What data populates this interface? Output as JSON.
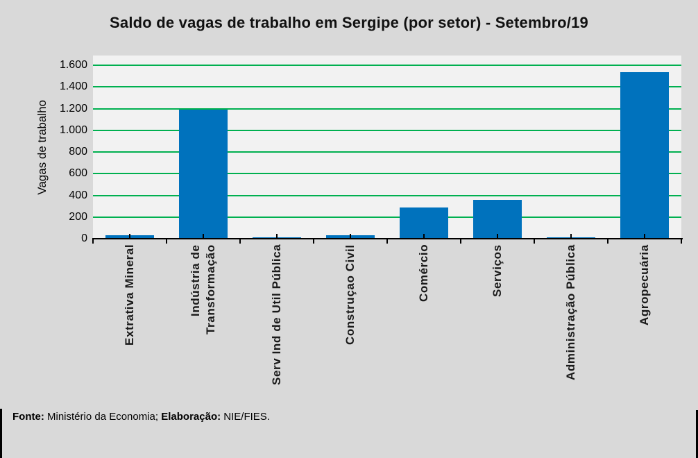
{
  "page": {
    "background": "#d9d9d9"
  },
  "chart_data": {
    "type": "bar",
    "title": "Saldo de vagas de trabalho em Sergipe (por setor) - Setembro/19",
    "categories": [
      "Extrativa Mineral",
      "Indústria de\nTransformação",
      "Serv Ind de Util Pública",
      "Construçao Civil",
      "Comércio",
      "Serviços",
      "Administração Pública",
      "Agropecuária"
    ],
    "values": [
      35,
      1190,
      15,
      35,
      285,
      360,
      10,
      1535
    ],
    "xlabel": "",
    "ylabel": "Vagas de trabalho",
    "ylim": [
      0,
      1690
    ],
    "yticks": [
      {
        "value": 0,
        "label": "0"
      },
      {
        "value": 200,
        "label": "200"
      },
      {
        "value": 400,
        "label": "400"
      },
      {
        "value": 600,
        "label": "600"
      },
      {
        "value": 800,
        "label": "800"
      },
      {
        "value": 1000,
        "label": "1.000"
      },
      {
        "value": 1200,
        "label": "1.200"
      },
      {
        "value": 1400,
        "label": "1.400"
      },
      {
        "value": 1600,
        "label": "1.600"
      }
    ],
    "grid": "horizontal",
    "legend": "none",
    "colors": {
      "bar": "#0072bd",
      "gridline": "#00b050",
      "plot_background": "#f2f2f2",
      "page_background": "#d9d9d9",
      "axis": "#000000"
    }
  },
  "footer": {
    "fonte_label": "Fonte:",
    "fonte_text": " Ministério da Economia; ",
    "elaboracao_label": "Elaboração:",
    "elaboracao_text": " NIE/FIES."
  }
}
